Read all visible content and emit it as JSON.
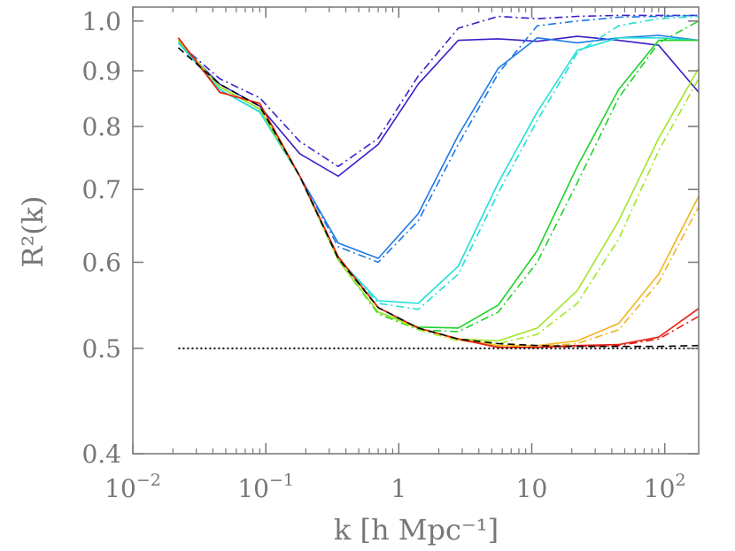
{
  "chart_data": {
    "type": "line",
    "title": "",
    "xlabel": "k [h Mpc⁻¹]",
    "ylabel": "R²(k)",
    "xscale": "log",
    "yscale": "log",
    "xlim": [
      0.01,
      180
    ],
    "ylim": [
      0.4,
      1.03
    ],
    "grid": false,
    "legend": "none",
    "x_ticks": [
      {
        "value": 0.01,
        "base": "10",
        "exp": "−2"
      },
      {
        "value": 0.1,
        "base": "10",
        "exp": "−1"
      },
      {
        "value": 1,
        "base": "1",
        "exp": ""
      },
      {
        "value": 10,
        "base": "10",
        "exp": ""
      },
      {
        "value": 100,
        "base": "10",
        "exp": "2"
      }
    ],
    "y_ticks": [
      {
        "value": 0.4,
        "label": "0.4"
      },
      {
        "value": 0.5,
        "label": "0.5"
      },
      {
        "value": 0.6,
        "label": "0.6"
      },
      {
        "value": 0.7,
        "label": "0.7"
      },
      {
        "value": 0.8,
        "label": "0.8"
      },
      {
        "value": 0.9,
        "label": "0.9"
      },
      {
        "value": 1.0,
        "label": "1.0"
      }
    ],
    "series": [
      {
        "color": "#3a1fc8",
        "style": "solid",
        "x": [
          0.022,
          0.045,
          0.09,
          0.18,
          0.35,
          0.7,
          1.4,
          2.8,
          5.6,
          11,
          22,
          45,
          90,
          180
        ],
        "y": [
          0.955,
          0.875,
          0.835,
          0.755,
          0.72,
          0.77,
          0.875,
          0.96,
          0.963,
          0.958,
          0.968,
          0.96,
          0.95,
          0.86
        ]
      },
      {
        "color": "#3a1fc8",
        "style": "dashdot",
        "x": [
          0.022,
          0.045,
          0.09,
          0.18,
          0.35,
          0.7,
          1.4,
          2.8,
          5.6,
          11,
          22,
          45,
          90,
          180
        ],
        "y": [
          0.955,
          0.885,
          0.85,
          0.775,
          0.735,
          0.78,
          0.89,
          0.985,
          1.01,
          1.005,
          1.01,
          1.012,
          1.012,
          1.012
        ]
      },
      {
        "color": "#1e78e6",
        "style": "solid",
        "x": [
          0.022,
          0.045,
          0.09,
          0.18,
          0.35,
          0.7,
          1.4,
          2.8,
          5.6,
          11,
          22,
          45,
          90,
          180
        ],
        "y": [
          0.955,
          0.865,
          0.825,
          0.72,
          0.625,
          0.605,
          0.665,
          0.785,
          0.905,
          0.965,
          0.955,
          0.965,
          0.97,
          0.96
        ]
      },
      {
        "color": "#1e78e6",
        "style": "dashdot",
        "x": [
          0.022,
          0.045,
          0.09,
          0.18,
          0.35,
          0.7,
          1.4,
          2.8,
          5.6,
          11,
          22,
          45,
          90,
          180
        ],
        "y": [
          0.955,
          0.865,
          0.825,
          0.72,
          0.62,
          0.6,
          0.655,
          0.77,
          0.895,
          0.99,
          1.0,
          1.008,
          1.01,
          1.012
        ]
      },
      {
        "color": "#22e0d8",
        "style": "solid",
        "x": [
          0.022,
          0.045,
          0.09,
          0.18,
          0.35,
          0.7,
          1.4,
          2.8,
          5.6,
          11,
          22,
          45,
          90,
          180
        ],
        "y": [
          0.955,
          0.865,
          0.825,
          0.72,
          0.605,
          0.553,
          0.55,
          0.595,
          0.71,
          0.825,
          0.94,
          0.965,
          0.965,
          0.96
        ]
      },
      {
        "color": "#22e0d8",
        "style": "dashdot",
        "x": [
          0.022,
          0.045,
          0.09,
          0.18,
          0.35,
          0.7,
          1.4,
          2.8,
          5.6,
          11,
          22,
          45,
          90,
          180
        ],
        "y": [
          0.955,
          0.865,
          0.825,
          0.72,
          0.605,
          0.55,
          0.543,
          0.585,
          0.695,
          0.81,
          0.935,
          0.99,
          1.005,
          1.01
        ]
      },
      {
        "color": "#1ed228",
        "style": "solid",
        "x": [
          0.022,
          0.045,
          0.09,
          0.18,
          0.35,
          0.7,
          1.4,
          2.8,
          5.6,
          11,
          22,
          45,
          90,
          180
        ],
        "y": [
          0.96,
          0.87,
          0.83,
          0.72,
          0.603,
          0.54,
          0.523,
          0.522,
          0.548,
          0.615,
          0.735,
          0.865,
          0.96,
          0.96
        ]
      },
      {
        "color": "#1ed228",
        "style": "dashdot",
        "x": [
          0.022,
          0.045,
          0.09,
          0.18,
          0.35,
          0.7,
          1.4,
          2.8,
          5.6,
          11,
          22,
          45,
          90,
          180
        ],
        "y": [
          0.96,
          0.87,
          0.83,
          0.72,
          0.603,
          0.538,
          0.52,
          0.518,
          0.54,
          0.6,
          0.71,
          0.85,
          0.955,
          1.0
        ]
      },
      {
        "color": "#a0e628",
        "style": "solid",
        "x": [
          0.022,
          0.045,
          0.09,
          0.18,
          0.35,
          0.7,
          1.4,
          2.8,
          5.6,
          11,
          22,
          45,
          90,
          180
        ],
        "y": [
          0.96,
          0.87,
          0.83,
          0.72,
          0.603,
          0.54,
          0.522,
          0.51,
          0.508,
          0.522,
          0.565,
          0.655,
          0.78,
          0.905
        ]
      },
      {
        "color": "#a0e628",
        "style": "dashdot",
        "x": [
          0.022,
          0.045,
          0.09,
          0.18,
          0.35,
          0.7,
          1.4,
          2.8,
          5.6,
          11,
          22,
          45,
          90,
          180
        ],
        "y": [
          0.96,
          0.87,
          0.83,
          0.72,
          0.603,
          0.54,
          0.52,
          0.508,
          0.505,
          0.515,
          0.55,
          0.63,
          0.76,
          0.885
        ]
      },
      {
        "color": "#f0b41e",
        "style": "solid",
        "x": [
          0.022,
          0.045,
          0.09,
          0.18,
          0.35,
          0.7,
          1.4,
          2.8,
          5.6,
          11,
          22,
          45,
          90,
          180
        ],
        "y": [
          0.965,
          0.86,
          0.84,
          0.72,
          0.607,
          0.545,
          0.522,
          0.51,
          0.503,
          0.503,
          0.508,
          0.527,
          0.585,
          0.69
        ]
      },
      {
        "color": "#f0b41e",
        "style": "dashdot",
        "x": [
          0.022,
          0.045,
          0.09,
          0.18,
          0.35,
          0.7,
          1.4,
          2.8,
          5.6,
          11,
          22,
          45,
          90,
          180
        ],
        "y": [
          0.965,
          0.86,
          0.84,
          0.72,
          0.607,
          0.545,
          0.522,
          0.509,
          0.502,
          0.502,
          0.505,
          0.52,
          0.575,
          0.675
        ]
      },
      {
        "color": "#e61e14",
        "style": "solid",
        "x": [
          0.022,
          0.045,
          0.09,
          0.18,
          0.35,
          0.7,
          1.4,
          2.8,
          5.6,
          11,
          22,
          45,
          90,
          180
        ],
        "y": [
          0.965,
          0.86,
          0.84,
          0.72,
          0.607,
          0.545,
          0.522,
          0.51,
          0.501,
          0.501,
          0.503,
          0.504,
          0.512,
          0.544
        ]
      },
      {
        "color": "#e61e14",
        "style": "dashdot",
        "x": [
          0.022,
          0.045,
          0.09,
          0.18,
          0.35,
          0.7,
          1.4,
          2.8,
          5.6,
          11,
          22,
          45,
          90,
          180
        ],
        "y": [
          0.965,
          0.86,
          0.84,
          0.72,
          0.607,
          0.545,
          0.522,
          0.51,
          0.501,
          0.501,
          0.502,
          0.503,
          0.51,
          0.535
        ]
      },
      {
        "color": "#000000",
        "style": "dashed",
        "x": [
          0.022,
          0.045,
          0.09,
          0.18,
          0.35,
          0.7,
          1.4,
          2.8,
          5.6,
          11,
          22,
          45,
          90,
          180
        ],
        "y": [
          0.945,
          0.875,
          0.835,
          0.72,
          0.605,
          0.545,
          0.522,
          0.51,
          0.505,
          0.503,
          0.502,
          0.502,
          0.502,
          0.503
        ]
      },
      {
        "color": "#000000",
        "style": "dotted",
        "x": [
          0.022,
          180
        ],
        "y": [
          0.5,
          0.5
        ]
      }
    ]
  }
}
